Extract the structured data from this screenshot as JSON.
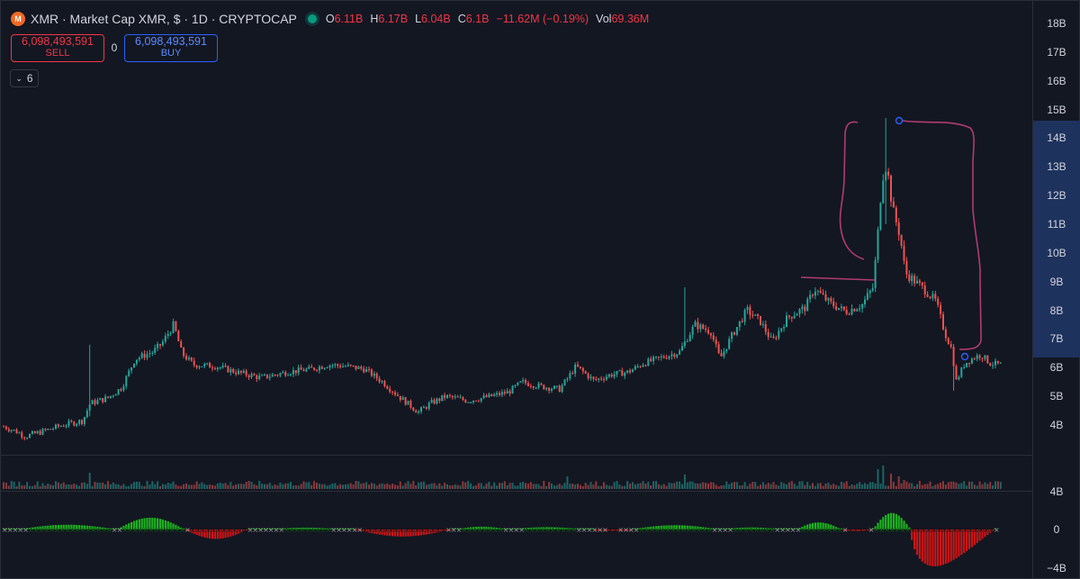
{
  "legend": {
    "symbol": "XMR · Market Cap XMR, $ · 1D · CRYPTOCAP",
    "logo_glyph": "M",
    "open_label": "O",
    "open": "6.11B",
    "high_label": "H",
    "high": "6.17B",
    "low_label": "L",
    "low": "6.04B",
    "close_label": "C",
    "close": "6.1B",
    "change": "−11.62M (−0.19%)",
    "vol_label": "Vol",
    "vol": "69.36M"
  },
  "trade": {
    "sell_price": "6,098,493,591",
    "sell_label": "SELL",
    "spread": "0",
    "buy_price": "6,098,493,591",
    "buy_label": "BUY"
  },
  "indicator_toggle": {
    "count": "6"
  },
  "price_axis": {
    "labels": [
      "18B",
      "17B",
      "16B",
      "15B",
      "14B",
      "13B",
      "12B",
      "11B",
      "10B",
      "9B",
      "8B",
      "7B",
      "6B",
      "5B",
      "4B"
    ],
    "highlight_range": [
      "7B",
      "14.5B"
    ]
  },
  "oscillator_axis": {
    "labels": [
      "4B",
      "0",
      "−4B"
    ]
  },
  "colors": {
    "up": "#26a69a",
    "down": "#ef5350",
    "osc_up": "#1ec41e",
    "osc_down": "#e01515",
    "drawing": "#b03b72",
    "accent": "#2962ff"
  },
  "chart_data": {
    "type": "candlestick",
    "title": "XMR · Market Cap XMR, $ · 1D · CRYPTOCAP",
    "ylim": [
      3.3,
      18.5
    ],
    "y_unit": "B",
    "close_path": [
      [
        0,
        4.0
      ],
      [
        20,
        3.75
      ],
      [
        28,
        3.6
      ],
      [
        55,
        3.85
      ],
      [
        70,
        4.0
      ],
      [
        92,
        4.15
      ],
      [
        100,
        4.75
      ],
      [
        120,
        4.95
      ],
      [
        135,
        5.3
      ],
      [
        150,
        6.3
      ],
      [
        170,
        6.55
      ],
      [
        180,
        6.85
      ],
      [
        193,
        7.5
      ],
      [
        202,
        6.5
      ],
      [
        215,
        6.1
      ],
      [
        240,
        6.05
      ],
      [
        262,
        5.85
      ],
      [
        290,
        5.65
      ],
      [
        320,
        5.85
      ],
      [
        345,
        5.95
      ],
      [
        365,
        6.1
      ],
      [
        385,
        6.05
      ],
      [
        405,
        5.95
      ],
      [
        425,
        5.5
      ],
      [
        445,
        4.95
      ],
      [
        465,
        4.45
      ],
      [
        478,
        4.75
      ],
      [
        495,
        5.0
      ],
      [
        520,
        4.85
      ],
      [
        545,
        5.0
      ],
      [
        565,
        5.15
      ],
      [
        580,
        5.5
      ],
      [
        600,
        5.35
      ],
      [
        622,
        5.25
      ],
      [
        640,
        6.05
      ],
      [
        660,
        5.55
      ],
      [
        678,
        5.75
      ],
      [
        698,
        5.85
      ],
      [
        715,
        6.15
      ],
      [
        735,
        6.35
      ],
      [
        755,
        6.55
      ],
      [
        772,
        7.5
      ],
      [
        790,
        7.25
      ],
      [
        800,
        6.3
      ],
      [
        812,
        7.05
      ],
      [
        830,
        8.0
      ],
      [
        845,
        7.6
      ],
      [
        858,
        6.9
      ],
      [
        875,
        7.75
      ],
      [
        895,
        8.1
      ],
      [
        905,
        8.75
      ],
      [
        922,
        8.25
      ],
      [
        940,
        7.95
      ],
      [
        958,
        8.2
      ],
      [
        970,
        8.8
      ],
      [
        975,
        10.5
      ],
      [
        980,
        12.6
      ],
      [
        985,
        13.1
      ],
      [
        992,
        11.5
      ],
      [
        1000,
        10.6
      ],
      [
        1006,
        9.3
      ],
      [
        1015,
        9.05
      ],
      [
        1028,
        8.7
      ],
      [
        1040,
        8.3
      ],
      [
        1050,
        7.2
      ],
      [
        1058,
        6.6
      ],
      [
        1062,
        5.5
      ],
      [
        1072,
        6.15
      ],
      [
        1082,
        6.35
      ],
      [
        1090,
        6.45
      ],
      [
        1100,
        6.15
      ],
      [
        1112,
        6.1
      ]
    ],
    "spikes": [
      [
        100,
        4.3,
        6.8
      ],
      [
        762,
        7.0,
        8.8
      ],
      [
        985,
        11.0,
        14.7
      ],
      [
        1060,
        5.2,
        6.5
      ]
    ],
    "volume_spikes": [
      [
        100,
        18
      ],
      [
        630,
        14
      ],
      [
        760,
        16
      ],
      [
        975,
        22
      ],
      [
        982,
        26
      ],
      [
        990,
        17
      ],
      [
        998,
        14
      ],
      [
        1005,
        10
      ]
    ],
    "oscillator": {
      "ylim": [
        -4.2,
        4.2
      ],
      "bumps": [
        [
          20,
          130,
          0.5
        ],
        [
          130,
          205,
          1.25
        ],
        [
          205,
          275,
          -1.0
        ],
        [
          300,
          380,
          0.2
        ],
        [
          395,
          500,
          -0.75
        ],
        [
          505,
          565,
          0.3
        ],
        [
          565,
          650,
          0.25
        ],
        [
          660,
          700,
          -0.15
        ],
        [
          700,
          800,
          0.45
        ],
        [
          800,
          870,
          0.22
        ],
        [
          885,
          935,
          0.75
        ],
        [
          935,
          968,
          -0.2
        ],
        [
          970,
          1012,
          1.75
        ],
        [
          1012,
          1105,
          -3.9
        ]
      ]
    },
    "annotations": [
      "bracket-around-peak",
      "horizontal-line",
      "circle-markers"
    ]
  }
}
